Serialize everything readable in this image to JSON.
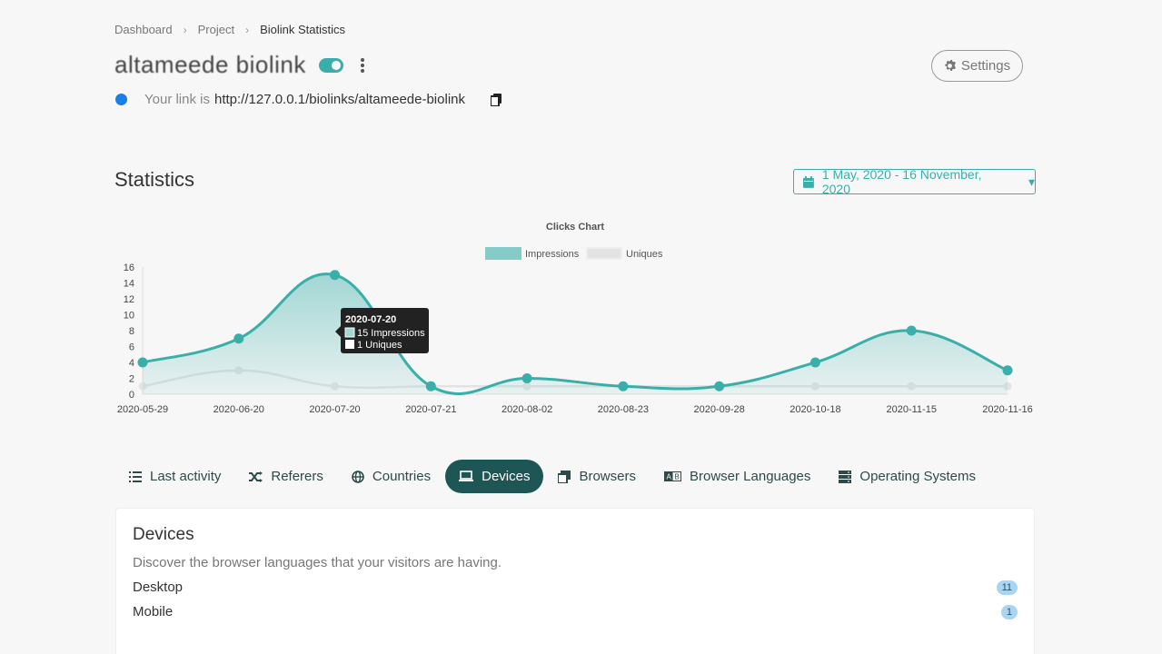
{
  "breadcrumb": {
    "items": [
      "Dashboard",
      "Project"
    ],
    "current": "Biolink Statistics"
  },
  "header": {
    "title": "altameede biolink",
    "link_prefix": "Your link is",
    "link_url": "http://127.0.0.1/biolinks/altameede-biolink",
    "settings_label": "Settings"
  },
  "stats": {
    "title": "Statistics",
    "date_range": "1 May, 2020 - 16 November, 2020"
  },
  "chart_data": {
    "type": "line",
    "title": "Clicks Chart",
    "categories": [
      "2020-05-29",
      "2020-06-20",
      "2020-07-20",
      "2020-07-21",
      "2020-08-02",
      "2020-08-23",
      "2020-09-28",
      "2020-10-18",
      "2020-11-15",
      "2020-11-16"
    ],
    "series": [
      {
        "name": "Impressions",
        "values": [
          4,
          7,
          15,
          1,
          2,
          1,
          1,
          4,
          8,
          3
        ],
        "color": "#3aafa9"
      },
      {
        "name": "Uniques",
        "values": [
          1,
          3,
          1,
          1,
          1,
          1,
          1,
          1,
          1,
          1
        ],
        "color": "#e3e3e3"
      }
    ],
    "ylim": [
      0,
      16
    ],
    "yticks": [
      "0",
      "2",
      "4",
      "6",
      "8",
      "10",
      "12",
      "14",
      "16"
    ],
    "legend": "top",
    "tooltip": {
      "title": "2020-07-20",
      "line1": "15 Impressions",
      "line2": "1 Uniques"
    }
  },
  "tabs": [
    {
      "label": "Last activity",
      "icon": "list-icon"
    },
    {
      "label": "Referers",
      "icon": "shuffle-icon"
    },
    {
      "label": "Countries",
      "icon": "globe-icon"
    },
    {
      "label": "Devices",
      "icon": "laptop-icon",
      "active": true
    },
    {
      "label": "Browsers",
      "icon": "window-icon"
    },
    {
      "label": "Browser Languages",
      "icon": "language-icon"
    },
    {
      "label": "Operating Systems",
      "icon": "server-icon"
    }
  ],
  "card": {
    "title": "Devices",
    "description": "Discover the browser languages that your visitors are having.",
    "rows": [
      {
        "label": "Desktop",
        "count": "11"
      },
      {
        "label": "Mobile",
        "count": "1"
      }
    ]
  },
  "colors": {
    "accent": "#3aafa9",
    "active_tab": "#1e5555",
    "badge": "#a9d4f2"
  }
}
